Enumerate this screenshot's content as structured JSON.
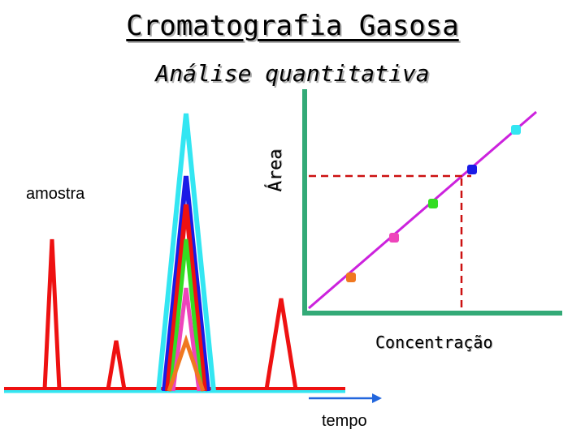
{
  "title": "Cromatografia Gasosa",
  "subtitle": "Análise quantitativa",
  "labels": {
    "sample": "amostra",
    "y_axis": "Área",
    "x_axis": "Concentração",
    "time": "tempo"
  },
  "colors": {
    "baseline_cyan": "#33e6f2",
    "sample_red": "#ee1111",
    "blue": "#1a1ae6",
    "green": "#33dd22",
    "pink": "#ee44bb",
    "orange": "#f07820",
    "axis_green": "#33aa77",
    "calibration_line": "#cc22dd",
    "time_arrow": "#2266dd"
  },
  "calibration_points": [
    {
      "color": "orange"
    },
    {
      "color": "pink"
    },
    {
      "color": "green"
    },
    {
      "color": "blue"
    },
    {
      "color": "cyan"
    }
  ]
}
